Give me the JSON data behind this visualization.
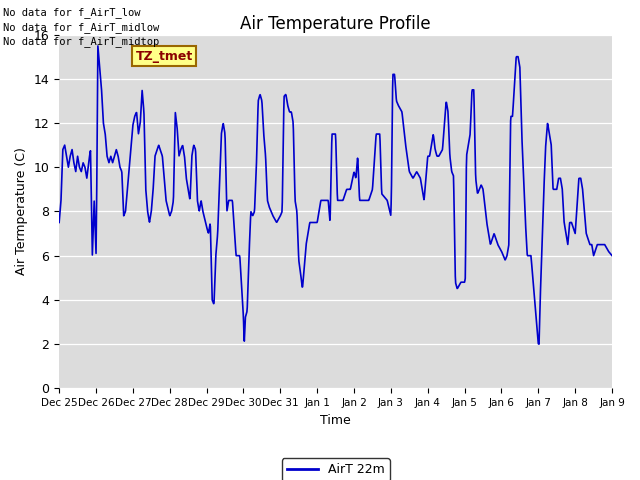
{
  "title": "Air Temperature Profile",
  "xlabel": "Time",
  "ylabel": "Air Termperature (C)",
  "ylim": [
    0,
    16
  ],
  "yticks": [
    0,
    2,
    4,
    6,
    8,
    10,
    12,
    14,
    16
  ],
  "line_color": "#0000CC",
  "line_width": 1.2,
  "bg_color": "#DCDCDC",
  "legend_label": "AirT 22m",
  "legend_line_color": "#0000CC",
  "annotations": [
    "No data for f_AirT_low",
    "No data for f_AirT_midlow",
    "No data for f_AirT_midtop"
  ],
  "annotation_box_label": "TZ_tmet",
  "x_tick_labels": [
    "Dec 25",
    "Dec 26",
    "Dec 27",
    "Dec 28",
    "Dec 29",
    "Dec 30",
    "Dec 31",
    "Jan 1",
    "Jan 2",
    "Jan 3",
    "Jan 4",
    "Jan 5",
    "Jan 6",
    "Jan 7",
    "Jan 8",
    "Jan 9"
  ],
  "key_points": [
    [
      0.0,
      7.5
    ],
    [
      0.05,
      8.5
    ],
    [
      0.1,
      10.8
    ],
    [
      0.15,
      11.0
    ],
    [
      0.2,
      10.5
    ],
    [
      0.25,
      10.0
    ],
    [
      0.3,
      10.5
    ],
    [
      0.35,
      10.8
    ],
    [
      0.4,
      10.2
    ],
    [
      0.45,
      9.8
    ],
    [
      0.5,
      10.5
    ],
    [
      0.55,
      10.0
    ],
    [
      0.6,
      9.8
    ],
    [
      0.65,
      10.2
    ],
    [
      0.7,
      10.0
    ],
    [
      0.75,
      9.5
    ],
    [
      0.8,
      10.2
    ],
    [
      0.85,
      10.8
    ],
    [
      0.9,
      6.0
    ],
    [
      0.95,
      8.5
    ],
    [
      1.0,
      6.0
    ],
    [
      1.02,
      9.0
    ],
    [
      1.05,
      15.5
    ],
    [
      1.1,
      14.5
    ],
    [
      1.15,
      13.5
    ],
    [
      1.2,
      12.0
    ],
    [
      1.25,
      11.5
    ],
    [
      1.3,
      10.5
    ],
    [
      1.35,
      10.2
    ],
    [
      1.4,
      10.5
    ],
    [
      1.45,
      10.2
    ],
    [
      1.5,
      10.5
    ],
    [
      1.55,
      10.8
    ],
    [
      1.6,
      10.5
    ],
    [
      1.65,
      10.0
    ],
    [
      1.7,
      9.8
    ],
    [
      1.75,
      7.8
    ],
    [
      1.8,
      8.0
    ],
    [
      2.0,
      11.9
    ],
    [
      2.05,
      12.3
    ],
    [
      2.1,
      12.5
    ],
    [
      2.15,
      11.5
    ],
    [
      2.2,
      12.0
    ],
    [
      2.25,
      13.5
    ],
    [
      2.3,
      12.5
    ],
    [
      2.35,
      9.0
    ],
    [
      2.4,
      8.0
    ],
    [
      2.45,
      7.5
    ],
    [
      2.5,
      8.0
    ],
    [
      2.55,
      9.0
    ],
    [
      2.6,
      10.5
    ],
    [
      2.7,
      11.0
    ],
    [
      2.8,
      10.5
    ],
    [
      2.9,
      8.5
    ],
    [
      3.0,
      7.8
    ],
    [
      3.05,
      8.0
    ],
    [
      3.1,
      8.5
    ],
    [
      3.15,
      12.5
    ],
    [
      3.2,
      11.8
    ],
    [
      3.25,
      10.5
    ],
    [
      3.3,
      10.8
    ],
    [
      3.35,
      11.0
    ],
    [
      3.4,
      10.5
    ],
    [
      3.45,
      9.5
    ],
    [
      3.5,
      9.0
    ],
    [
      3.55,
      8.5
    ],
    [
      3.6,
      10.5
    ],
    [
      3.65,
      11.0
    ],
    [
      3.7,
      10.8
    ],
    [
      3.75,
      8.5
    ],
    [
      3.8,
      8.0
    ],
    [
      3.85,
      8.5
    ],
    [
      3.9,
      8.0
    ],
    [
      4.0,
      7.3
    ],
    [
      4.05,
      7.0
    ],
    [
      4.1,
      7.5
    ],
    [
      4.15,
      4.0
    ],
    [
      4.2,
      3.8
    ],
    [
      4.25,
      6.0
    ],
    [
      4.3,
      7.0
    ],
    [
      4.4,
      11.5
    ],
    [
      4.45,
      12.0
    ],
    [
      4.5,
      11.5
    ],
    [
      4.55,
      8.0
    ],
    [
      4.6,
      8.5
    ],
    [
      4.7,
      8.5
    ],
    [
      4.8,
      6.0
    ],
    [
      4.9,
      6.0
    ],
    [
      5.0,
      3.2
    ],
    [
      5.02,
      2.0
    ],
    [
      5.05,
      3.2
    ],
    [
      5.1,
      3.5
    ],
    [
      5.15,
      6.0
    ],
    [
      5.2,
      8.0
    ],
    [
      5.25,
      7.8
    ],
    [
      5.3,
      8.0
    ],
    [
      5.35,
      10.0
    ],
    [
      5.4,
      13.0
    ],
    [
      5.45,
      13.3
    ],
    [
      5.5,
      13.0
    ],
    [
      5.55,
      11.5
    ],
    [
      5.6,
      10.5
    ],
    [
      5.65,
      8.5
    ],
    [
      5.7,
      8.2
    ],
    [
      5.8,
      7.8
    ],
    [
      5.9,
      7.5
    ],
    [
      6.0,
      7.8
    ],
    [
      6.05,
      8.0
    ],
    [
      6.1,
      13.2
    ],
    [
      6.15,
      13.3
    ],
    [
      6.2,
      12.8
    ],
    [
      6.25,
      12.5
    ],
    [
      6.3,
      12.5
    ],
    [
      6.35,
      12.0
    ],
    [
      6.4,
      8.5
    ],
    [
      6.45,
      8.0
    ],
    [
      6.5,
      5.8
    ],
    [
      6.55,
      5.2
    ],
    [
      6.6,
      4.5
    ],
    [
      6.65,
      5.5
    ],
    [
      6.7,
      6.5
    ],
    [
      6.8,
      7.5
    ],
    [
      6.9,
      7.5
    ],
    [
      7.0,
      7.5
    ],
    [
      7.05,
      8.0
    ],
    [
      7.1,
      8.5
    ],
    [
      7.2,
      8.5
    ],
    [
      7.3,
      8.5
    ],
    [
      7.35,
      7.5
    ],
    [
      7.4,
      11.5
    ],
    [
      7.45,
      11.5
    ],
    [
      7.5,
      11.5
    ],
    [
      7.55,
      8.5
    ],
    [
      7.6,
      8.5
    ],
    [
      7.7,
      8.5
    ],
    [
      7.8,
      9.0
    ],
    [
      7.9,
      9.0
    ],
    [
      8.0,
      9.8
    ],
    [
      8.05,
      9.5
    ],
    [
      8.1,
      10.5
    ],
    [
      8.15,
      8.5
    ],
    [
      8.2,
      8.5
    ],
    [
      8.3,
      8.5
    ],
    [
      8.4,
      8.5
    ],
    [
      8.5,
      9.0
    ],
    [
      8.6,
      11.5
    ],
    [
      8.65,
      11.5
    ],
    [
      8.7,
      11.5
    ],
    [
      8.75,
      8.8
    ],
    [
      8.9,
      8.5
    ],
    [
      9.0,
      7.8
    ],
    [
      9.02,
      9.5
    ],
    [
      9.05,
      14.2
    ],
    [
      9.1,
      14.2
    ],
    [
      9.15,
      13.0
    ],
    [
      9.2,
      12.8
    ],
    [
      9.3,
      12.5
    ],
    [
      9.4,
      11.0
    ],
    [
      9.5,
      9.8
    ],
    [
      9.6,
      9.5
    ],
    [
      9.7,
      9.8
    ],
    [
      9.8,
      9.5
    ],
    [
      9.9,
      8.5
    ],
    [
      10.0,
      10.5
    ],
    [
      10.05,
      10.5
    ],
    [
      10.1,
      11.0
    ],
    [
      10.15,
      11.5
    ],
    [
      10.2,
      10.8
    ],
    [
      10.25,
      10.5
    ],
    [
      10.3,
      10.5
    ],
    [
      10.4,
      10.8
    ],
    [
      10.5,
      13.0
    ],
    [
      10.55,
      12.5
    ],
    [
      10.6,
      10.5
    ],
    [
      10.65,
      9.8
    ],
    [
      10.7,
      9.6
    ],
    [
      10.75,
      4.8
    ],
    [
      10.8,
      4.5
    ],
    [
      10.9,
      4.8
    ],
    [
      11.0,
      4.8
    ],
    [
      11.02,
      5.0
    ],
    [
      11.05,
      10.5
    ],
    [
      11.1,
      11.0
    ],
    [
      11.15,
      11.5
    ],
    [
      11.2,
      13.5
    ],
    [
      11.25,
      13.5
    ],
    [
      11.3,
      9.5
    ],
    [
      11.35,
      8.8
    ],
    [
      11.4,
      9.0
    ],
    [
      11.45,
      9.2
    ],
    [
      11.5,
      9.0
    ],
    [
      11.6,
      7.5
    ],
    [
      11.7,
      6.5
    ],
    [
      11.8,
      7.0
    ],
    [
      11.9,
      6.5
    ],
    [
      12.0,
      6.2
    ],
    [
      12.05,
      6.0
    ],
    [
      12.1,
      5.8
    ],
    [
      12.15,
      6.0
    ],
    [
      12.2,
      6.5
    ],
    [
      12.25,
      12.3
    ],
    [
      12.3,
      12.3
    ],
    [
      12.4,
      15.0
    ],
    [
      12.45,
      15.0
    ],
    [
      12.5,
      14.5
    ],
    [
      12.55,
      11.5
    ],
    [
      12.6,
      9.5
    ],
    [
      12.65,
      7.5
    ],
    [
      12.7,
      6.0
    ],
    [
      12.8,
      6.0
    ],
    [
      13.0,
      2.0
    ],
    [
      13.02,
      2.0
    ],
    [
      13.05,
      4.0
    ],
    [
      13.1,
      6.5
    ],
    [
      13.15,
      9.0
    ],
    [
      13.2,
      11.0
    ],
    [
      13.25,
      12.0
    ],
    [
      13.3,
      11.5
    ],
    [
      13.35,
      11.0
    ],
    [
      13.4,
      9.0
    ],
    [
      13.45,
      9.0
    ],
    [
      13.5,
      9.0
    ],
    [
      13.55,
      9.5
    ],
    [
      13.6,
      9.5
    ],
    [
      13.65,
      9.0
    ],
    [
      13.7,
      7.5
    ],
    [
      13.8,
      6.5
    ],
    [
      13.85,
      7.5
    ],
    [
      13.9,
      7.5
    ],
    [
      14.0,
      7.0
    ],
    [
      14.1,
      9.5
    ],
    [
      14.15,
      9.5
    ],
    [
      14.2,
      9.0
    ],
    [
      14.3,
      7.0
    ],
    [
      14.4,
      6.5
    ],
    [
      14.45,
      6.5
    ],
    [
      14.5,
      6.0
    ],
    [
      14.6,
      6.5
    ],
    [
      14.7,
      6.5
    ],
    [
      14.8,
      6.5
    ],
    [
      14.9,
      6.2
    ],
    [
      15.0,
      6.0
    ]
  ]
}
